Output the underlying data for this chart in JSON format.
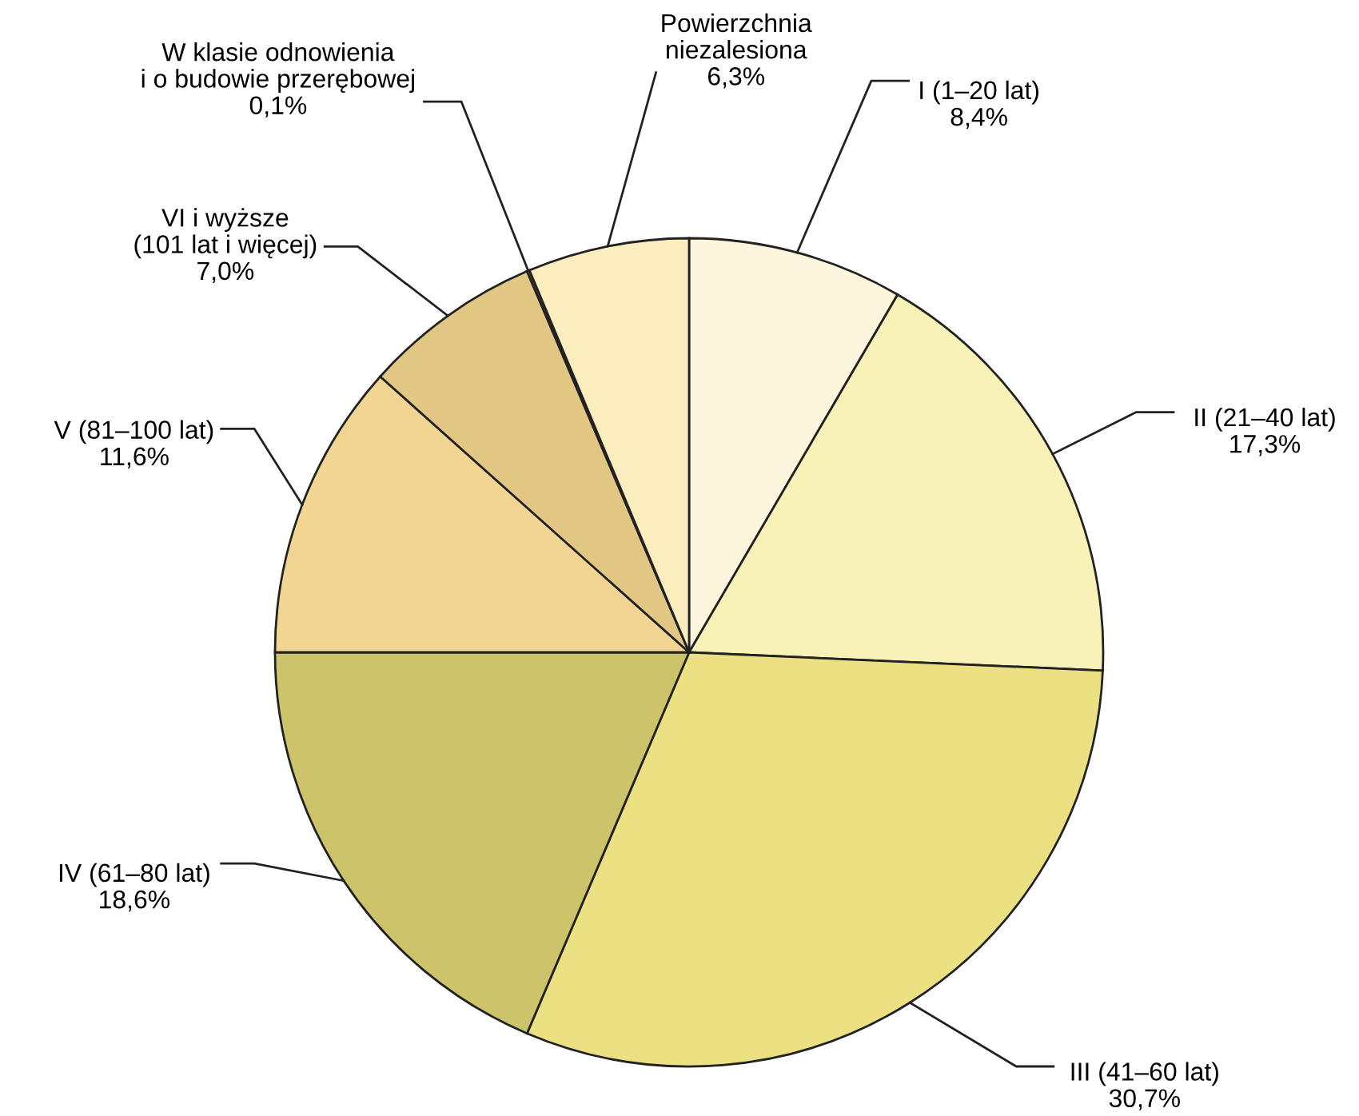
{
  "chart_data": {
    "type": "pie",
    "categories": [
      "I (1–20 lat)",
      "II (21–40 lat)",
      "III (41–60 lat)",
      "IV (61–80 lat)",
      "V (81–100 lat)",
      "VI i wyższe\n(101 lat i więcej)",
      "W klasie odnowienia\ni o budowie przerębowej",
      "Powierzchnia\nniezalesiona"
    ],
    "values": [
      8.4,
      17.3,
      30.7,
      18.6,
      11.6,
      7.0,
      0.1,
      6.3
    ],
    "value_labels": [
      "8,4%",
      "17,3%",
      "30,7%",
      "18,6%",
      "11,6%",
      "7,0%",
      "0,1%",
      "6,3%"
    ],
    "colors": [
      "#fef6dc",
      "#f8f2b8",
      "#ebe183",
      "#cdc36b",
      "#f2d593",
      "#e2c684",
      "#8a7a40",
      "#fcedbf"
    ]
  }
}
